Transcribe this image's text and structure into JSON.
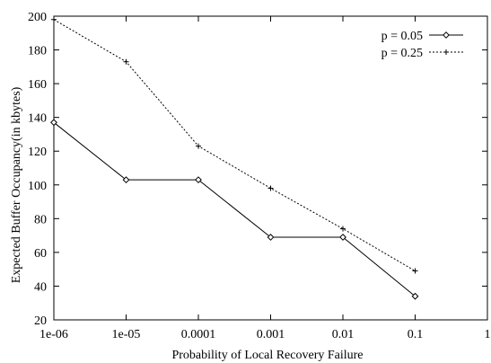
{
  "chart_data": {
    "type": "line",
    "xlabel": "Probability of Local Recovery Failure",
    "ylabel": "Expected Buffer Occupancy(in kbytes)",
    "x_scale": "log",
    "x_categories": [
      "1e-06",
      "1e-05",
      "0.0001",
      "0.001",
      "0.01",
      "0.1"
    ],
    "x_tick_labels": [
      "1e-06",
      "1e-05",
      "0.0001",
      "0.001",
      "0.01",
      "0.1",
      "1"
    ],
    "xlim": [
      1e-06,
      1
    ],
    "ylim": [
      20,
      200
    ],
    "y_ticks": [
      20,
      40,
      60,
      80,
      100,
      120,
      140,
      160,
      180,
      200
    ],
    "grid": false,
    "legend_position": "top-right",
    "series": [
      {
        "name": "p = 0.05",
        "style": "solid",
        "marker": "diamond",
        "color": "#000000",
        "x": [
          1e-06,
          1e-05,
          0.0001,
          0.001,
          0.01,
          0.1
        ],
        "values": [
          137,
          103,
          103,
          69,
          69,
          34
        ]
      },
      {
        "name": "p = 0.25",
        "style": "dotted",
        "marker": "plus",
        "color": "#000000",
        "x": [
          1e-06,
          1e-05,
          0.0001,
          0.001,
          0.01,
          0.1
        ],
        "values": [
          198,
          173,
          123,
          98,
          74,
          49
        ]
      }
    ]
  }
}
